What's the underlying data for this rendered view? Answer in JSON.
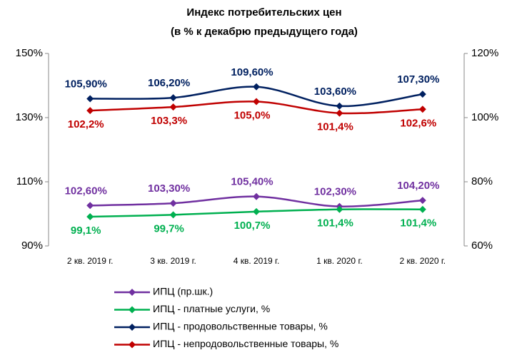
{
  "chart_data": {
    "type": "line",
    "title": [
      "Индекс потребительских цен",
      "(в % к декабрю предыдущего года)"
    ],
    "categories": [
      "2 кв. 2019 г.",
      "3 кв. 2019 г.",
      "4 кв. 2019 г.",
      "1 кв. 2020 г.",
      "2 кв. 2020 г."
    ],
    "series": [
      {
        "name": "ИПЦ (пр.шк.)",
        "color": "#7030a0",
        "values": [
          102.6,
          103.3,
          105.4,
          102.3,
          104.2
        ],
        "value_labels": [
          "102,60%",
          "103,30%",
          "105,40%",
          "102,30%",
          "104,20%"
        ]
      },
      {
        "name": "ИПЦ - платные услуги, %",
        "color": "#00b050",
        "values": [
          99.1,
          99.7,
          100.7,
          101.4,
          101.4
        ],
        "value_labels": [
          "99,1%",
          "99,7%",
          "100,7%",
          "101,4%",
          "101,4%"
        ]
      },
      {
        "name": "ИПЦ - продовольственные товары, %",
        "color": "#002060",
        "axis": "y2",
        "values": [
          105.9,
          106.2,
          109.6,
          103.6,
          107.3
        ],
        "value_labels": [
          "105,90%",
          "106,20%",
          "109,60%",
          "103,60%",
          "107,30%"
        ]
      },
      {
        "name": "ИПЦ - непродовольственные товары, %",
        "color": "#c00000",
        "axis": "y2",
        "values": [
          102.2,
          103.3,
          105.0,
          101.4,
          102.6
        ],
        "value_labels": [
          "102,2%",
          "103,3%",
          "105,0%",
          "101,4%",
          "102,6%"
        ]
      }
    ],
    "ylim": [
      90,
      150
    ],
    "yticks": [
      {
        "value": 90,
        "label": "90%"
      },
      {
        "value": 110,
        "label": "110%"
      },
      {
        "value": 130,
        "label": "130%"
      },
      {
        "value": 150,
        "label": "150%"
      }
    ],
    "y2lim": [
      60,
      120
    ],
    "y2ticks": [
      {
        "value": 60,
        "label": "60%"
      },
      {
        "value": 80,
        "label": "80%"
      },
      {
        "value": 100,
        "label": "100%"
      },
      {
        "value": 120,
        "label": "120%"
      }
    ],
    "legend": "bottom"
  }
}
